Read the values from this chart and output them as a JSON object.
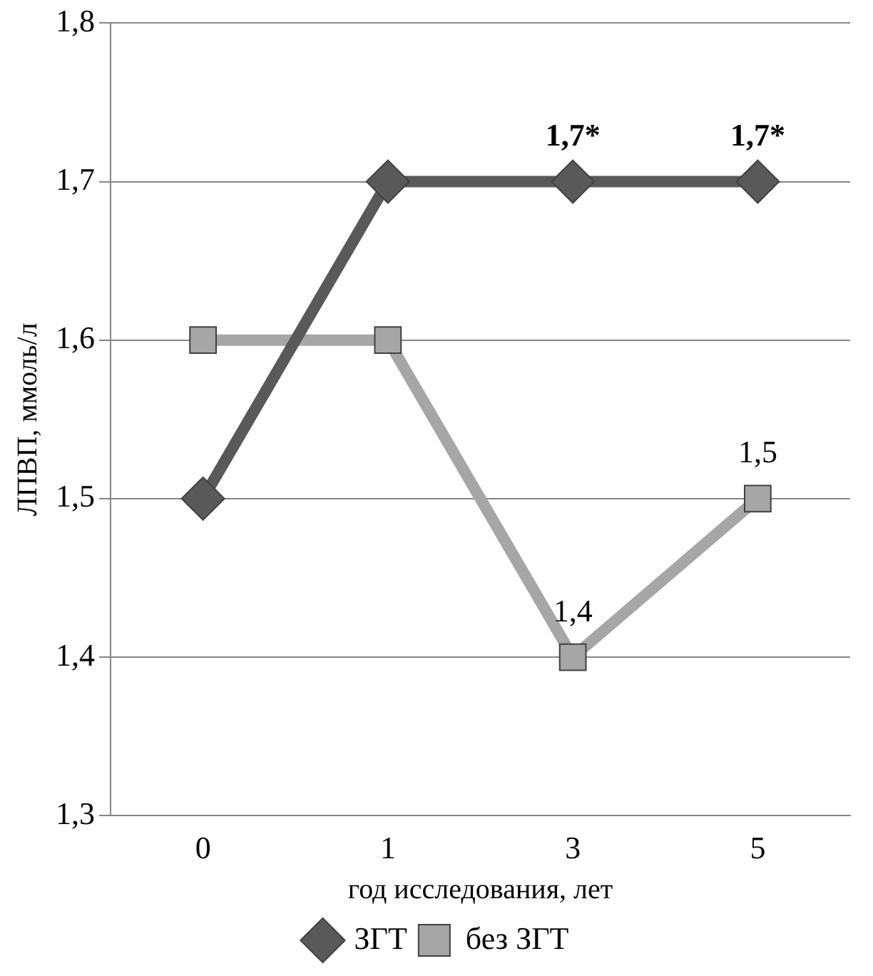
{
  "chart_data": {
    "type": "line",
    "xlabel": "год исследования, лет",
    "ylabel": "ЛПВП, ммоль/л",
    "categories": [
      "0",
      "1",
      "3",
      "5"
    ],
    "series": [
      {
        "name": "ЗГТ",
        "color": "#595959",
        "marker": "diamond",
        "values": [
          1.5,
          1.7,
          1.7,
          1.7
        ],
        "value_labels": [
          null,
          null,
          "1,7*",
          "1,7*"
        ]
      },
      {
        "name": "без ЗГТ",
        "color": "#a6a6a6",
        "marker": "square",
        "values": [
          1.6,
          1.6,
          1.4,
          1.5
        ],
        "value_labels": [
          null,
          null,
          "1,4",
          "1,5"
        ]
      }
    ],
    "ylim": [
      1.3,
      1.8
    ],
    "yticks": [
      {
        "value": 1.3,
        "label": "1,3"
      },
      {
        "value": 1.4,
        "label": "1,4"
      },
      {
        "value": 1.5,
        "label": "1,5"
      },
      {
        "value": 1.6,
        "label": "1,6"
      },
      {
        "value": 1.7,
        "label": "1,7"
      },
      {
        "value": 1.8,
        "label": "1,8"
      }
    ],
    "grid": "y",
    "legend": "bottom",
    "line_style": "solid"
  }
}
